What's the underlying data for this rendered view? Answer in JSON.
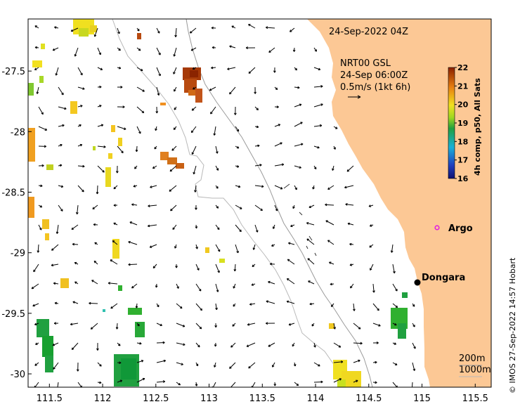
{
  "map": {
    "lon_range": [
      111.3,
      115.65
    ],
    "lat_range": [
      -30.11,
      -27.07
    ],
    "x_ticks": [
      "111.5",
      "112",
      "112.5",
      "113",
      "113.5",
      "114",
      "114.5",
      "115",
      "115.5"
    ],
    "y_ticks": [
      "-27.5",
      "-28",
      "-28.5",
      "-29",
      "-29.5",
      "-30"
    ],
    "timestamp": "24-Sep-2022 04Z",
    "current_info": {
      "line1": "NRT00 GSL",
      "line2": "24-Sep 06:00Z",
      "line3": "0.5m/s (1kt 6h)"
    },
    "colorbar": {
      "label": "4h comp, p50, All Sats",
      "ticks": [
        "22",
        "21",
        "20",
        "19",
        "18",
        "17",
        "16"
      ],
      "min": 16,
      "max": 22
    },
    "places": [
      {
        "name": "Argo",
        "lon": 115.0,
        "lat": -28.83
      },
      {
        "name": "Dongara",
        "lon": 114.93,
        "lat": -29.25
      }
    ],
    "depth_legend": [
      "200m",
      "1000m"
    ],
    "credit": "© IMOS 27-Sep-2022 14:57 Hobart",
    "colors": {
      "land": "#fcc895",
      "contour_200": "#9a9a9a",
      "contour_1000": "#b9b9b9",
      "argo": "#e020e0"
    }
  }
}
